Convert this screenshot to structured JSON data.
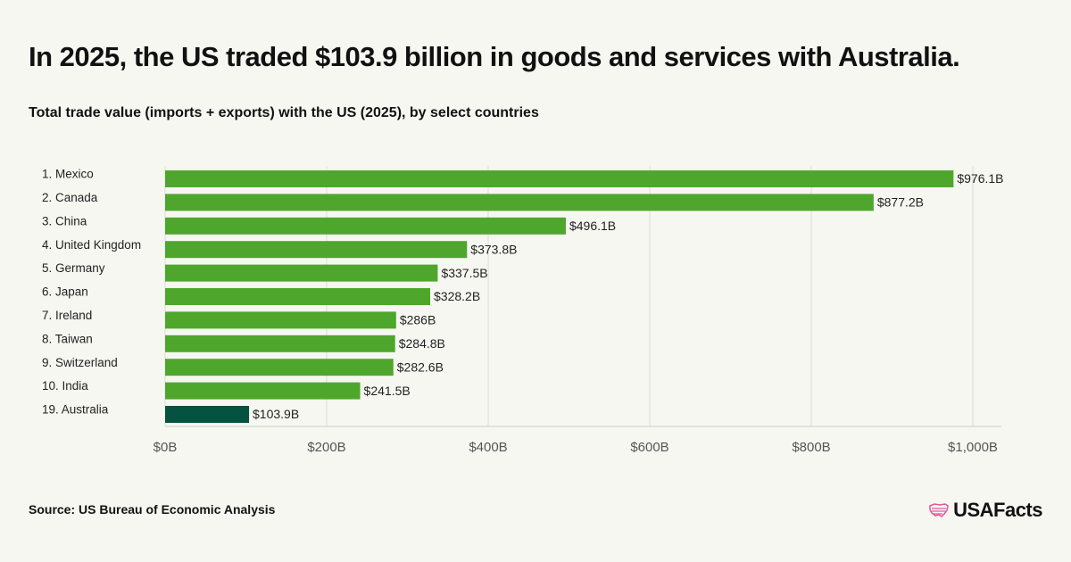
{
  "header": {
    "title": "In 2025, the US traded $103.9 billion in goods and services with Australia.",
    "subtitle": "Total trade value (imports + exports) with the US (2025), by select countries"
  },
  "footer": {
    "source": "Source: US Bureau of Economic Analysis",
    "logo_text": "USAFacts"
  },
  "colors": {
    "bar": "#4ea72c",
    "highlight": "#04523f",
    "grid": "#dcdcd6",
    "logo_accent": "#e0569b"
  },
  "chart_data": {
    "type": "bar",
    "orientation": "horizontal",
    "categories": [
      "1. Mexico",
      "2. Canada",
      "3. China",
      "4. United Kingdom",
      "5. Germany",
      "6. Japan",
      "7. Ireland",
      "8. Taiwan",
      "9. Switzerland",
      "10. India",
      "19. Australia"
    ],
    "values": [
      976.1,
      877.2,
      496.1,
      373.8,
      337.5,
      328.2,
      286,
      284.8,
      282.6,
      241.5,
      103.9
    ],
    "value_labels": [
      "$976.1B",
      "$877.2B",
      "$496.1B",
      "$373.8B",
      "$337.5B",
      "$328.2B",
      "$286B",
      "$284.8B",
      "$282.6B",
      "$241.5B",
      "$103.9B"
    ],
    "highlight_category": "19. Australia",
    "unit": "billion US dollars",
    "xlim": [
      0,
      1000
    ],
    "x_ticks": [
      0,
      200,
      400,
      600,
      800,
      1000
    ],
    "x_tick_labels": [
      "$0B",
      "$200B",
      "$400B",
      "$600B",
      "$800B",
      "$1,000B"
    ],
    "grid": true
  }
}
